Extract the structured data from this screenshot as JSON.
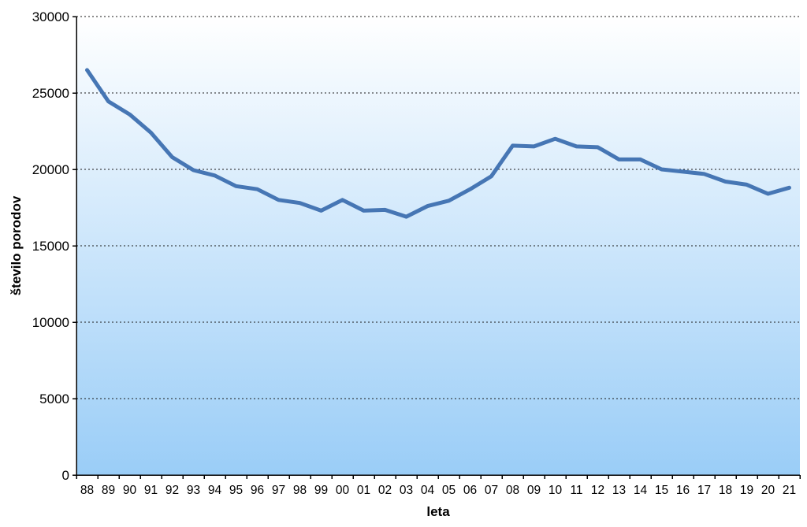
{
  "chart_data": {
    "type": "line",
    "title": "",
    "xlabel": "leta",
    "ylabel": "število porodov",
    "categories": [
      "88",
      "89",
      "90",
      "91",
      "92",
      "93",
      "94",
      "95",
      "96",
      "97",
      "98",
      "99",
      "00",
      "01",
      "02",
      "03",
      "04",
      "05",
      "06",
      "07",
      "08",
      "09",
      "10",
      "11",
      "12",
      "13",
      "14",
      "15",
      "16",
      "17",
      "18",
      "19",
      "20",
      "21"
    ],
    "values": [
      26500,
      24450,
      23600,
      22400,
      20800,
      19950,
      19600,
      18900,
      18700,
      18000,
      17800,
      17300,
      18000,
      17300,
      17350,
      16900,
      17600,
      17950,
      18700,
      19550,
      21550,
      21500,
      22000,
      21500,
      21450,
      20650,
      20650,
      20000,
      19850,
      19700,
      19200,
      19000,
      18400,
      18800
    ],
    "ylim": [
      0,
      30000
    ],
    "yticks": [
      0,
      5000,
      10000,
      15000,
      20000,
      25000,
      30000
    ],
    "grid": "dashed-horizontal",
    "legend": "none",
    "colors": {
      "line": "#4676b4",
      "plot_gradient_top": "#ffffff",
      "plot_gradient_bottom": "#9acdf7",
      "gridline": "#1a1a1a",
      "axis": "#000000",
      "text": "#000000"
    }
  }
}
